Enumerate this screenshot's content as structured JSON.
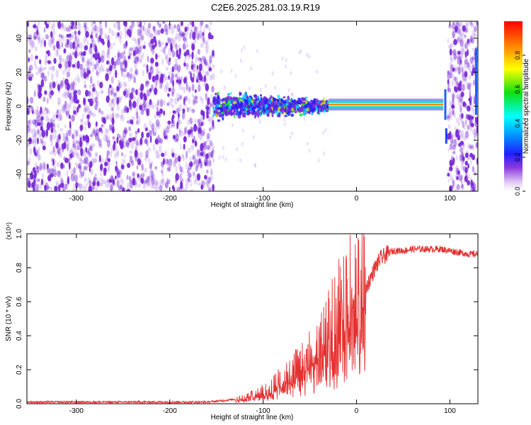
{
  "title": "C2E6.2025.281.03.19.R19",
  "colors": {
    "snr_line": "#e53030",
    "speckle": "#7a2cd8",
    "frame": "#000000"
  },
  "chart_data": [
    {
      "type": "heatmap",
      "xlabel": "Height of straight line (km)",
      "ylabel": "Frequency (Hz)",
      "xlim": [
        -353,
        130
      ],
      "ylim": [
        -50,
        50
      ],
      "x_ticks": [
        "-300",
        "-200",
        "-100",
        "0",
        "100"
      ],
      "x_tick_values": [
        -300,
        -200,
        -100,
        0,
        100
      ],
      "y_ticks": [
        "40",
        "20",
        "0",
        "-20",
        "-40"
      ],
      "y_tick_values": [
        40,
        20,
        0,
        -20,
        -40
      ],
      "colorbar": {
        "label": "Normalized spectral amplitude",
        "range": [
          0,
          1
        ],
        "ticks": [
          "0.0",
          "0.2",
          "0.4",
          "0.6",
          "0.8"
        ],
        "tick_values": [
          0.0,
          0.2,
          0.4,
          0.6,
          0.8
        ],
        "colormap": "rainbow (violet at 0, red at 1)"
      },
      "regions": [
        {
          "x_range": [
            -353,
            -153
          ],
          "content": "broadband noise, amplitude ~0.1-0.3, full frequency range"
        },
        {
          "x_range": [
            -153,
            -30
          ],
          "content": "signal near 0 Hz, width ~+/-8 Hz, amplitude ~0.3-0.6"
        },
        {
          "x_range": [
            -30,
            93
          ],
          "content": "narrow carrier line at ~1 Hz, amplitude ~0.8-1.0"
        },
        {
          "x_range": [
            98,
            130
          ],
          "content": "broadband noise, amplitude ~0.1-0.3"
        }
      ]
    },
    {
      "type": "line",
      "xlabel": "Height of straight line (km)",
      "ylabel": "SNR (10 * v/v)",
      "yscale_label": "(x10⁴)",
      "xlim": [
        -353,
        130
      ],
      "ylim": [
        0,
        1.0
      ],
      "x_ticks": [
        "-300",
        "-200",
        "-100",
        "0",
        "100"
      ],
      "x_tick_values": [
        -300,
        -200,
        -100,
        0,
        100
      ],
      "y_ticks": [
        "0.0",
        "0.2",
        "0.4",
        "0.6",
        "0.8",
        "1.0"
      ],
      "y_tick_values": [
        0.0,
        0.2,
        0.4,
        0.6,
        0.8,
        1.0
      ],
      "series": [
        {
          "x": [
            -353,
            -300,
            -250,
            -200,
            -160,
            -140,
            -125,
            -110,
            -100,
            -90,
            -80,
            -70,
            -60,
            -50,
            -40,
            -30,
            -25,
            -20,
            -15,
            -10,
            -5,
            0,
            5,
            10,
            15,
            20,
            25,
            30,
            35,
            40,
            50,
            60,
            70,
            80,
            90,
            100,
            110,
            120,
            130
          ],
          "y": [
            0.01,
            0.01,
            0.01,
            0.01,
            0.01,
            0.02,
            0.03,
            0.05,
            0.07,
            0.1,
            0.13,
            0.17,
            0.21,
            0.26,
            0.32,
            0.4,
            0.45,
            0.5,
            0.55,
            0.58,
            0.6,
            0.62,
            0.64,
            0.68,
            0.74,
            0.8,
            0.85,
            0.87,
            0.89,
            0.9,
            0.9,
            0.91,
            0.91,
            0.91,
            0.91,
            0.9,
            0.89,
            0.88,
            0.88
          ]
        }
      ]
    }
  ]
}
